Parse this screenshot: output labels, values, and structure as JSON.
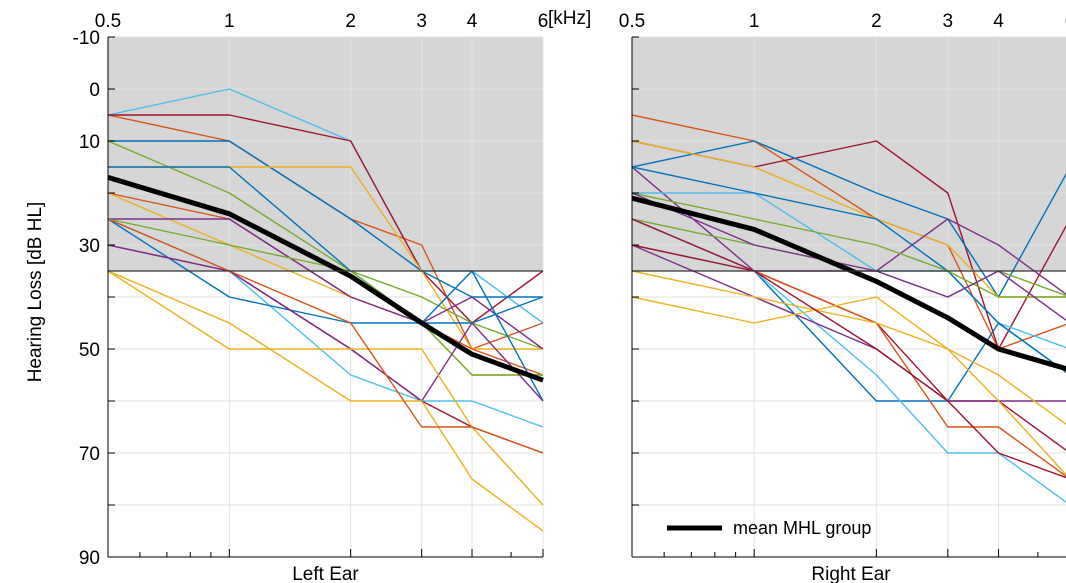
{
  "chart_data": {
    "type": "line",
    "ylabel": "Hearing Loss [dB HL]",
    "x_unit": "[kHz]",
    "x_scale": "log",
    "xlim": [
      0.5,
      6
    ],
    "ylim": [
      -10,
      90
    ],
    "y_reversed": true,
    "x_ticks": [
      0.5,
      1,
      2,
      3,
      4,
      6
    ],
    "x_tick_labels": [
      "0.5",
      "1",
      "2",
      "3",
      "4",
      "6"
    ],
    "y_tick_labels": [
      "-10",
      "0",
      "10",
      "30",
      "50",
      "70",
      "90"
    ],
    "y_tick_values": [
      -10,
      0,
      10,
      30,
      50,
      70,
      90
    ],
    "y_minor_ticks": [
      20,
      40,
      60,
      80
    ],
    "shaded_region": {
      "from": -10,
      "to": 35,
      "color": "#d6d6d6"
    },
    "threshold_line": 35,
    "grid": true,
    "x": [
      0.5,
      1,
      2,
      3,
      4,
      6
    ],
    "legend": {
      "label": "mean MHL group",
      "location": "bottom-left of right panel"
    },
    "colors": {
      "blue": "#0072bd",
      "orange": "#d95319",
      "yellow": "#edb120",
      "purple": "#7e2f8e",
      "green": "#77ac30",
      "cyan": "#4dbeee",
      "red": "#a2142f",
      "mean": "#000000"
    },
    "panels": [
      {
        "title": "Left Ear",
        "mean": [
          17,
          24,
          36,
          45,
          51,
          56
        ],
        "series": [
          {
            "color": "cyan",
            "values": [
              5,
              0,
              10,
              35,
              35,
              45
            ]
          },
          {
            "color": "orange",
            "values": [
              5,
              10,
              25,
              30,
              50,
              45
            ]
          },
          {
            "color": "red",
            "values": [
              5,
              5,
              10,
              35,
              45,
              35
            ]
          },
          {
            "color": "blue",
            "values": [
              10,
              10,
              25,
              35,
              40,
              40
            ]
          },
          {
            "color": "green",
            "values": [
              10,
              20,
              35,
              40,
              45,
              50
            ]
          },
          {
            "color": "yellow",
            "values": [
              15,
              15,
              15,
              35,
              50,
              50
            ]
          },
          {
            "color": "blue",
            "values": [
              15,
              15,
              35,
              45,
              45,
              40
            ]
          },
          {
            "color": "orange",
            "values": [
              20,
              25,
              40,
              45,
              50,
              55
            ]
          },
          {
            "color": "yellow",
            "values": [
              20,
              30,
              40,
              45,
              55,
              55
            ]
          },
          {
            "color": "purple",
            "values": [
              25,
              25,
              40,
              45,
              40,
              50
            ]
          },
          {
            "color": "green",
            "values": [
              25,
              30,
              35,
              45,
              55,
              55
            ]
          },
          {
            "color": "cyan",
            "values": [
              25,
              35,
              55,
              60,
              60,
              65
            ]
          },
          {
            "color": "blue",
            "values": [
              25,
              40,
              45,
              45,
              35,
              60
            ]
          },
          {
            "color": "red",
            "values": [
              30,
              35,
              50,
              60,
              65,
              70
            ]
          },
          {
            "color": "purple",
            "values": [
              30,
              35,
              50,
              60,
              45,
              60
            ]
          },
          {
            "color": "yellow",
            "values": [
              35,
              45,
              60,
              60,
              75,
              85
            ]
          },
          {
            "color": "yellow",
            "values": [
              35,
              50,
              50,
              50,
              65,
              80
            ]
          },
          {
            "color": "orange",
            "values": [
              25,
              35,
              45,
              65,
              65,
              70
            ]
          }
        ]
      },
      {
        "title": "Right Ear",
        "mean": [
          21,
          27,
          37,
          44,
          50,
          54
        ],
        "series": [
          {
            "color": "orange",
            "values": [
              5,
              10,
              25,
              30,
              50,
              45
            ]
          },
          {
            "color": "red",
            "values": [
              10,
              15,
              10,
              20,
              50,
              25
            ]
          },
          {
            "color": "blue",
            "values": [
              15,
              10,
              20,
              25,
              40,
              15
            ]
          },
          {
            "color": "yellow",
            "values": [
              10,
              15,
              25,
              30,
              40,
              40
            ]
          },
          {
            "color": "purple",
            "values": [
              15,
              35,
              35,
              25,
              30,
              40
            ]
          },
          {
            "color": "cyan",
            "values": [
              20,
              20,
              35,
              35,
              45,
              50
            ]
          },
          {
            "color": "blue",
            "values": [
              15,
              20,
              25,
              35,
              45,
              55
            ]
          },
          {
            "color": "green",
            "values": [
              20,
              25,
              30,
              35,
              40,
              40
            ]
          },
          {
            "color": "green",
            "values": [
              25,
              30,
              35,
              40,
              35,
              40
            ]
          },
          {
            "color": "purple",
            "values": [
              20,
              30,
              35,
              40,
              35,
              45
            ]
          },
          {
            "color": "blue",
            "values": [
              25,
              35,
              60,
              60,
              45,
              55
            ]
          },
          {
            "color": "red",
            "values": [
              25,
              35,
              45,
              60,
              60,
              70
            ]
          },
          {
            "color": "orange",
            "values": [
              30,
              35,
              45,
              65,
              65,
              75
            ]
          },
          {
            "color": "cyan",
            "values": [
              30,
              35,
              55,
              70,
              70,
              80
            ]
          },
          {
            "color": "purple",
            "values": [
              30,
              40,
              50,
              60,
              60,
              60
            ]
          },
          {
            "color": "yellow",
            "values": [
              35,
              40,
              45,
              50,
              60,
              75
            ]
          },
          {
            "color": "yellow",
            "values": [
              40,
              45,
              40,
              50,
              55,
              65
            ]
          },
          {
            "color": "red",
            "values": [
              30,
              35,
              50,
              60,
              70,
              75
            ]
          }
        ]
      }
    ]
  }
}
